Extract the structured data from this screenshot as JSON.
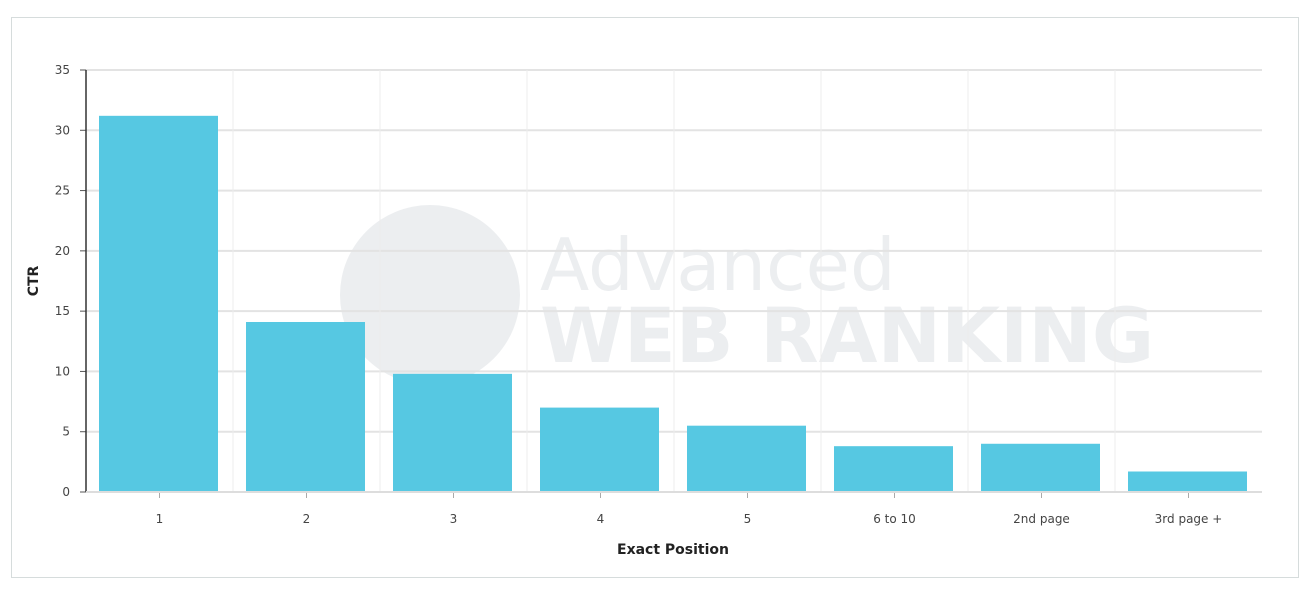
{
  "chart_data": {
    "type": "bar",
    "title": "",
    "xlabel": "Exact Position",
    "ylabel": "CTR",
    "categories": [
      "1",
      "2",
      "3",
      "4",
      "5",
      "6 to 10",
      "2nd page",
      "3rd page +"
    ],
    "values": [
      31.2,
      14.1,
      9.8,
      7.0,
      5.5,
      3.8,
      4.0,
      1.7
    ],
    "ylim": [
      0,
      35
    ],
    "yticks": [
      0,
      5,
      10,
      15,
      20,
      25,
      30,
      35
    ],
    "grid": true,
    "bar_color": "#56c8e2"
  },
  "watermark": {
    "line1": "Advanced",
    "line2": "WEB RANKING"
  }
}
